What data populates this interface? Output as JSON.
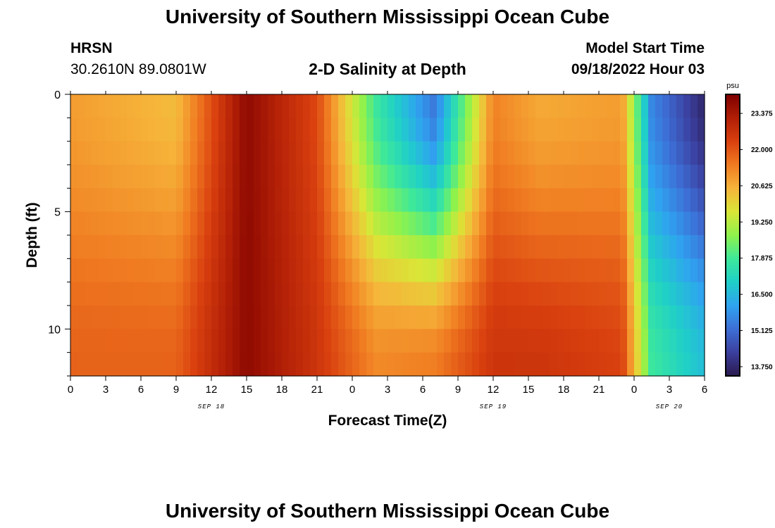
{
  "header": {
    "main_title": "University of Southern Mississippi Ocean Cube",
    "station": "HRSN",
    "coords": "30.2610N  89.0801W",
    "plot_title": "2-D Salinity at Depth",
    "model_label": "Model Start Time",
    "model_time": "09/18/2022 Hour 03"
  },
  "footer": {
    "title": "University of Southern Mississippi Ocean Cube"
  },
  "chart_data": {
    "type": "heatmap",
    "title": "2-D Salinity at Depth",
    "xlabel": "Forecast Time(Z)",
    "ylabel": "Depth (ft)",
    "x_ticks": [
      "0",
      "3",
      "6",
      "9",
      "12",
      "15",
      "18",
      "21",
      "0",
      "3",
      "6",
      "9",
      "12",
      "15",
      "18",
      "21",
      "0",
      "3",
      "6"
    ],
    "x_hour_range": [
      0,
      54
    ],
    "day_labels": [
      {
        "label": "SEP 18",
        "hour": 12
      },
      {
        "label": "SEP 19",
        "hour": 36
      },
      {
        "label": "SEP 20",
        "hour": 51
      }
    ],
    "y_ticks": [
      0,
      5,
      10
    ],
    "y_range": [
      0,
      12
    ],
    "depth_levels": 12,
    "colorbar": {
      "unit": "psu",
      "ticks": [
        "23.375",
        "22.000",
        "20.625",
        "19.250",
        "17.875",
        "16.500",
        "15.125",
        "13.750"
      ],
      "min": 13.4,
      "max": 24.1,
      "colors": [
        "#2a1a4e",
        "#3b3f9e",
        "#3d6fd6",
        "#2fa3f0",
        "#1fcfc8",
        "#3ee89a",
        "#8ff24c",
        "#d9e637",
        "#f6b43a",
        "#f07b21",
        "#d9400f",
        "#b01e06",
        "#7e0000"
      ]
    },
    "key_times_hours": [
      0,
      9,
      15,
      21,
      26,
      31,
      36,
      40,
      47,
      49.5,
      54
    ],
    "salinity_surface_psu": [
      20.9,
      20.4,
      23.8,
      22.2,
      17.8,
      15.3,
      21.3,
      20.7,
      20.9,
      15.6,
      13.7
    ],
    "salinity_bottom_psu": [
      21.8,
      21.8,
      23.8,
      22.6,
      21.2,
      21.4,
      22.6,
      22.6,
      22.3,
      17.8,
      16.6
    ]
  }
}
